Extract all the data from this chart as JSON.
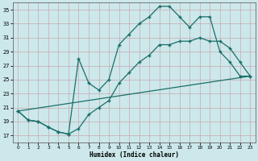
{
  "xlabel": "Humidex (Indice chaleur)",
  "bg_color": "#cce8ea",
  "line_color": "#1a6e6a",
  "grid_color": "#b8d8da",
  "xlim": [
    -0.5,
    23.5
  ],
  "ylim": [
    16.0,
    36.0
  ],
  "yticks": [
    17,
    19,
    21,
    23,
    25,
    27,
    29,
    31,
    33,
    35
  ],
  "xticks": [
    0,
    1,
    2,
    3,
    4,
    5,
    6,
    7,
    8,
    9,
    10,
    11,
    12,
    13,
    14,
    15,
    16,
    17,
    18,
    19,
    20,
    21,
    22,
    23
  ],
  "line1_x": [
    0,
    1,
    2,
    3,
    4,
    5,
    6,
    7,
    8,
    9,
    10,
    11,
    12,
    13,
    14,
    15,
    16,
    17,
    18,
    19,
    20,
    21,
    22,
    23
  ],
  "line1_y": [
    20.5,
    19.2,
    19.0,
    18.2,
    17.5,
    17.2,
    28.0,
    24.5,
    23.5,
    25.0,
    30.0,
    31.5,
    33.0,
    34.0,
    35.5,
    35.5,
    34.0,
    32.5,
    34.0,
    34.0,
    29.0,
    27.5,
    25.5,
    25.5
  ],
  "line2_x": [
    0,
    1,
    2,
    3,
    4,
    5,
    6,
    7,
    8,
    9,
    10,
    11,
    12,
    13,
    14,
    15,
    16,
    17,
    18,
    19,
    20,
    21,
    22,
    23
  ],
  "line2_y": [
    20.5,
    19.2,
    19.0,
    18.2,
    17.5,
    17.2,
    18.0,
    20.0,
    21.0,
    22.0,
    24.5,
    26.0,
    27.5,
    28.5,
    30.0,
    30.0,
    30.5,
    30.5,
    31.0,
    30.5,
    30.5,
    29.5,
    27.5,
    25.5
  ],
  "line3_x": [
    0,
    23
  ],
  "line3_y": [
    20.5,
    25.5
  ]
}
